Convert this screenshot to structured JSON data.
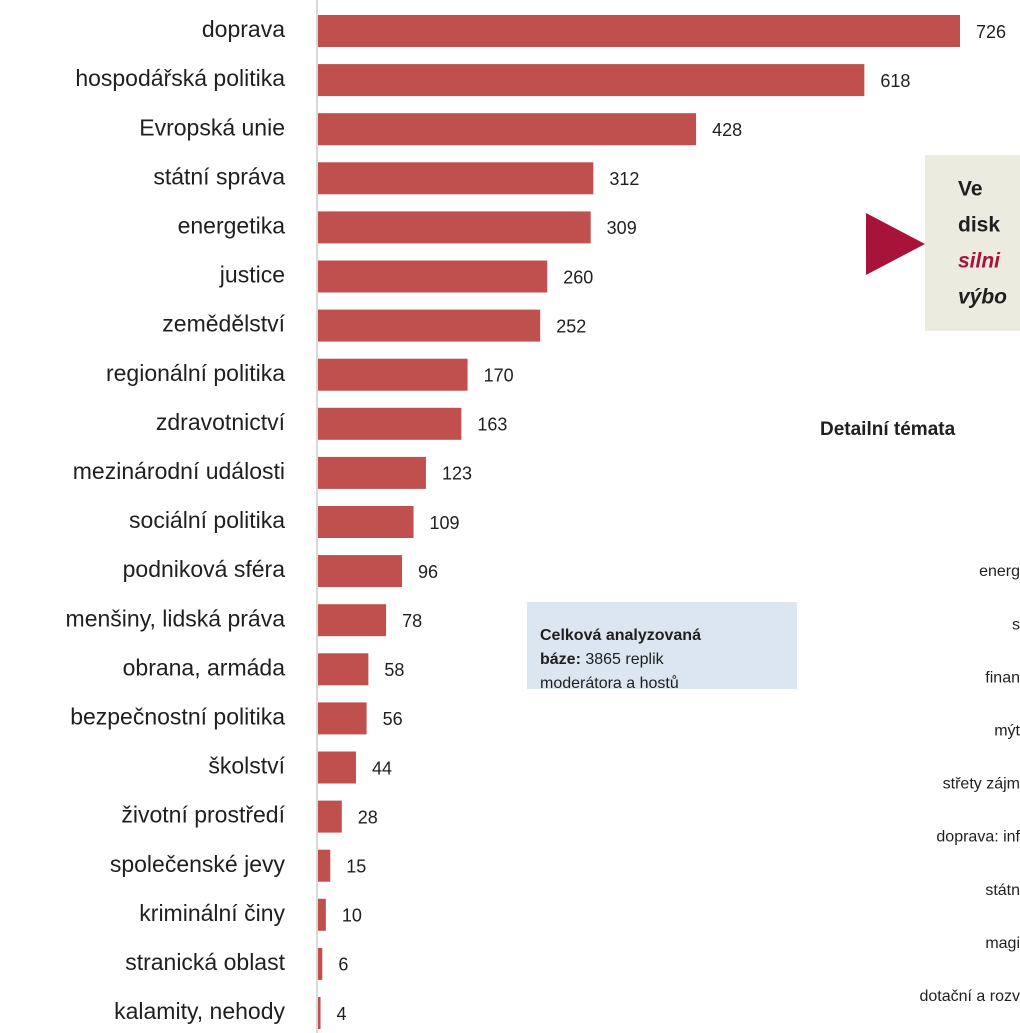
{
  "chart_data": {
    "type": "bar",
    "orientation": "horizontal",
    "color": "#c0504d",
    "categories": [
      "doprava",
      "hospodářská politika",
      "Evropská unie",
      "státní správa",
      "energetika",
      "justice",
      "zemědělství",
      "regionální politika",
      "zdravotnictví",
      "mezinárodní události",
      "sociální politika",
      "podniková sféra",
      "menšiny, lidská práva",
      "obrana, armáda",
      "bezpečnostní politika",
      "školství",
      "životní prostředí",
      "společenské jevy",
      "kriminální činy",
      "stranická oblast",
      "kalamity, nehody"
    ],
    "values": [
      726,
      618,
      428,
      312,
      309,
      260,
      252,
      170,
      163,
      123,
      109,
      96,
      78,
      58,
      56,
      44,
      28,
      15,
      10,
      6,
      4
    ],
    "callout": [
      "Ve",
      "disk",
      "silni",
      "výbo"
    ],
    "info_box": {
      "bold_1": "Celková analyzovaná",
      "bold_2": "báze:",
      "text_2": "3865 replik",
      "text_3": "moderátora a hostů"
    },
    "detail_title": "Detailní témata",
    "detail_labels": [
      "energ",
      "s",
      "finan",
      "mýt",
      "střety zájm",
      "doprava: inf",
      "státn",
      "magi",
      "dotační a rozv"
    ]
  }
}
